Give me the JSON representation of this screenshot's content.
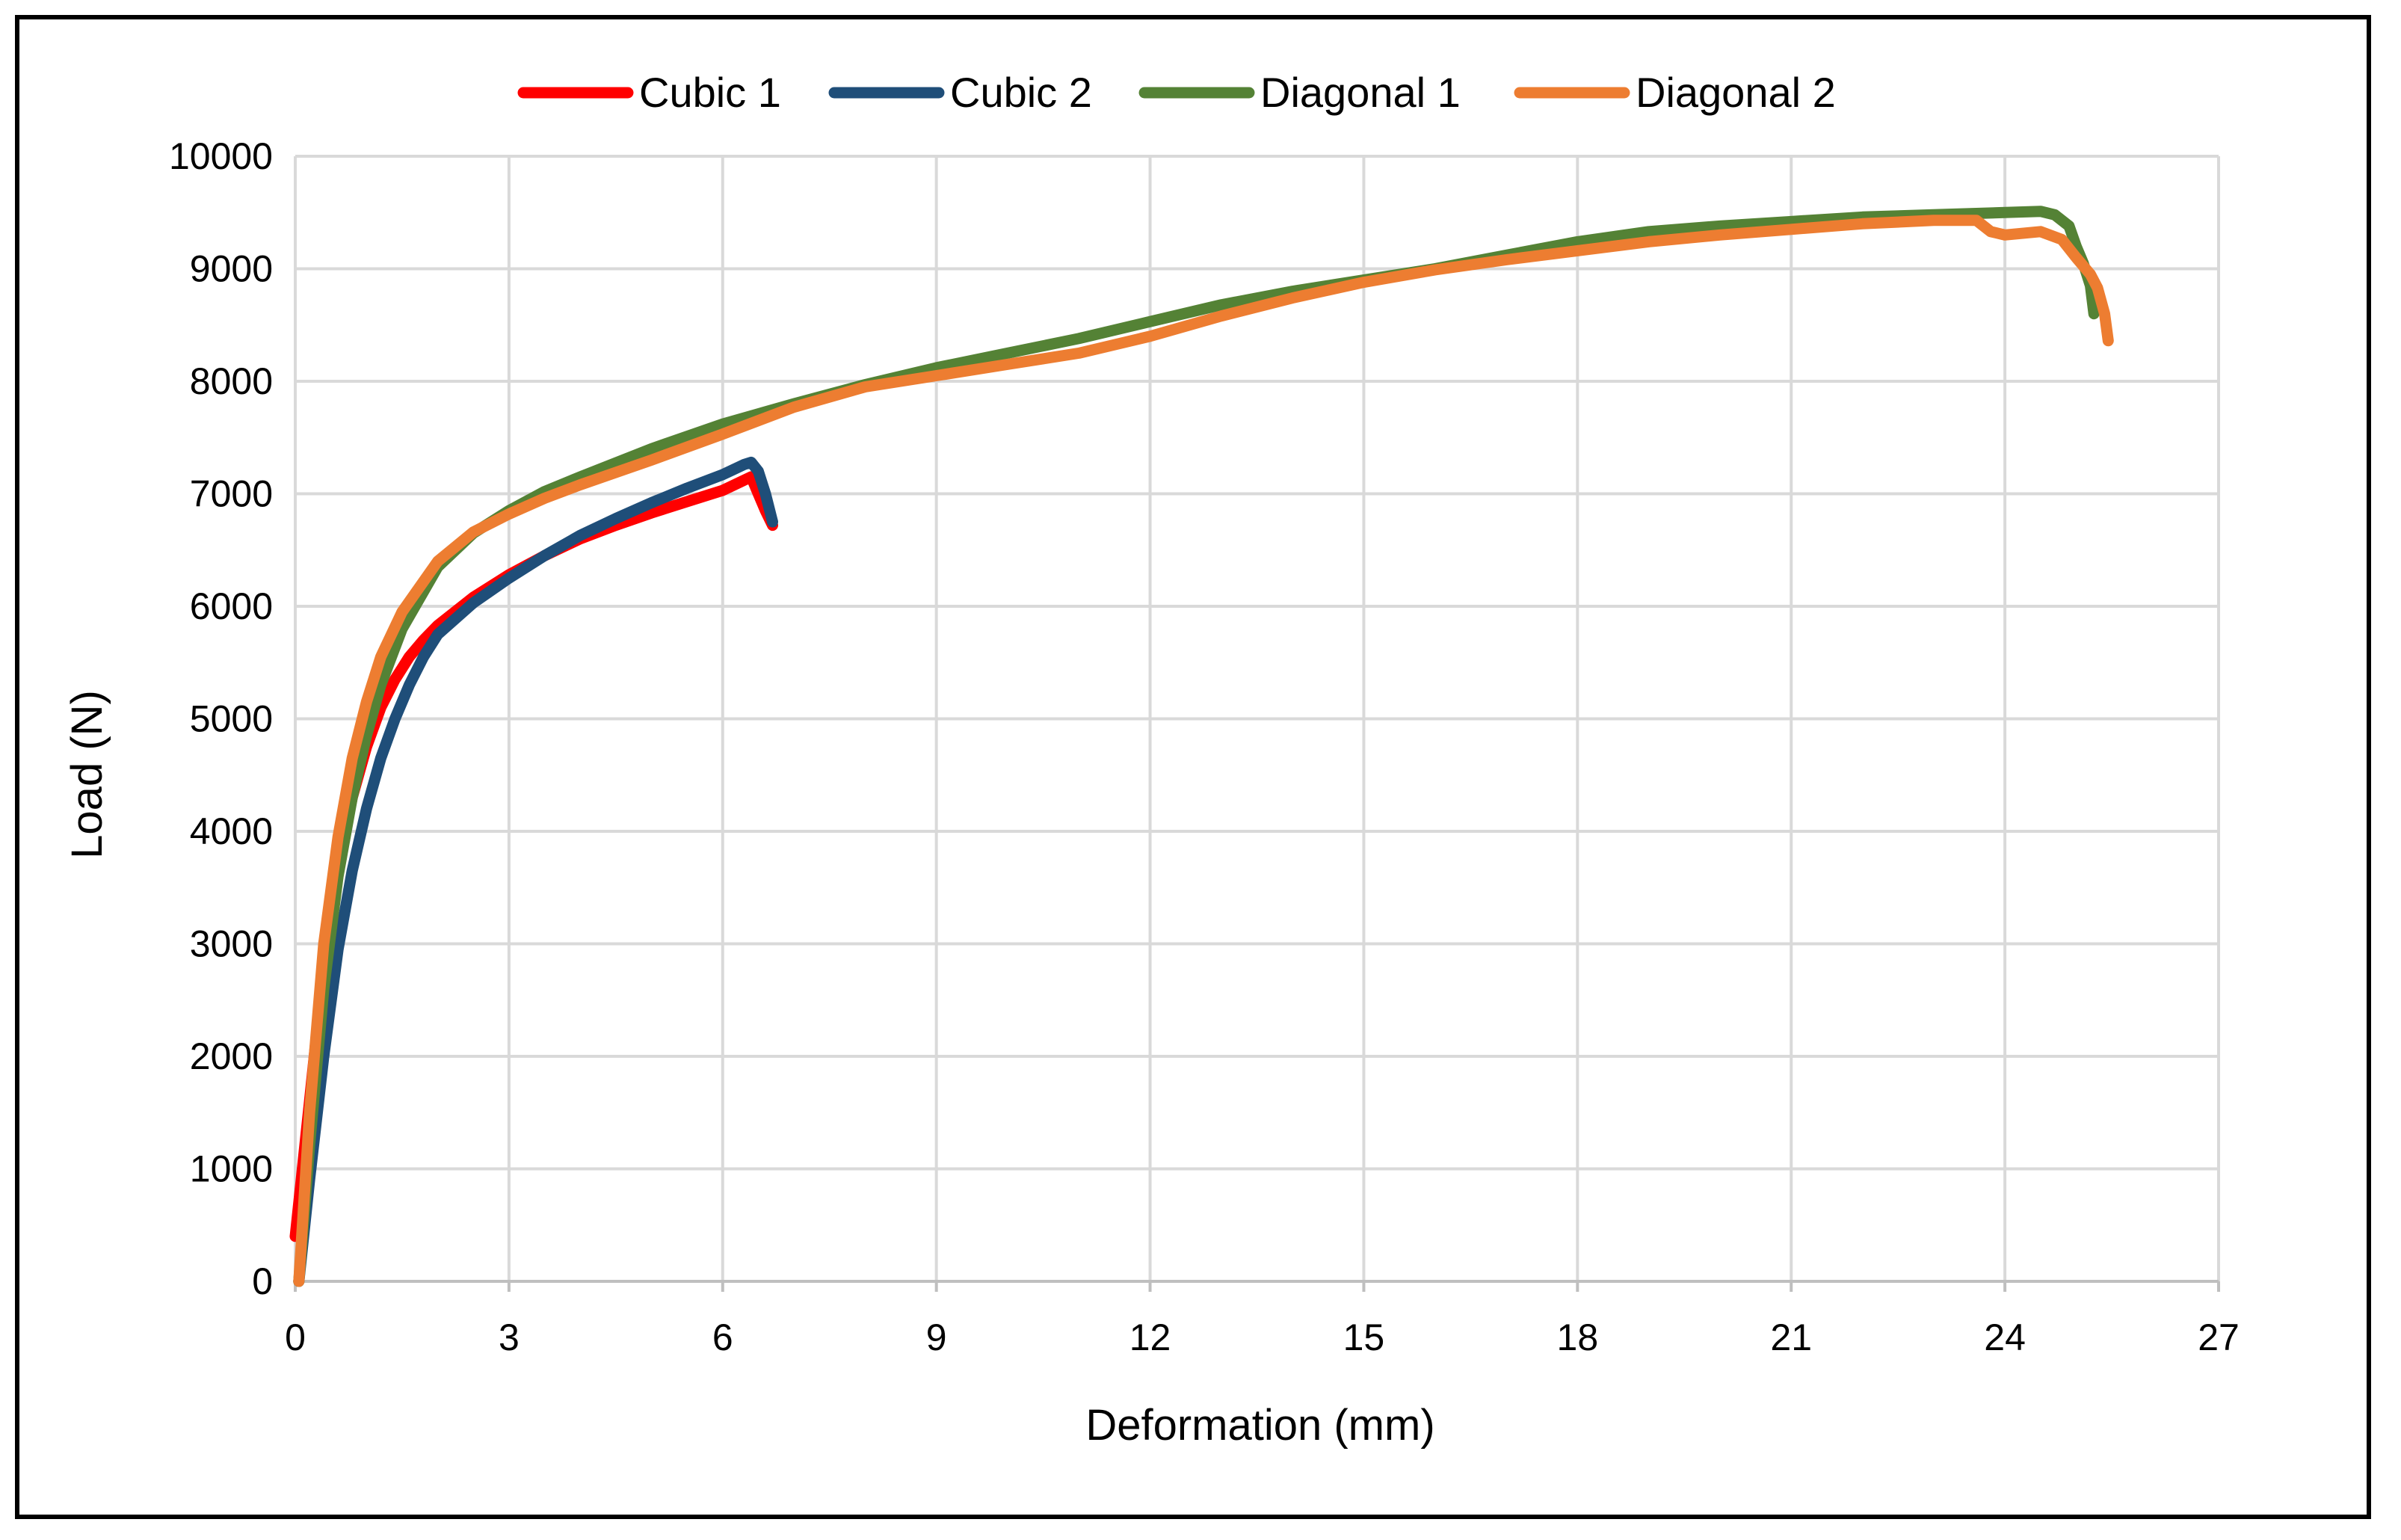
{
  "chart_data": {
    "type": "line",
    "title": "",
    "xlabel": "Deformation (mm)",
    "ylabel": "Load (N)",
    "xlim": [
      0,
      27
    ],
    "ylim": [
      0,
      10000
    ],
    "xticks": [
      0,
      3,
      6,
      9,
      12,
      15,
      18,
      21,
      24,
      27
    ],
    "yticks": [
      0,
      1000,
      2000,
      3000,
      4000,
      5000,
      6000,
      7000,
      8000,
      9000,
      10000
    ],
    "grid": true,
    "legend_position": "top-center",
    "series": [
      {
        "name": "Cubic 1",
        "color": "#ff0000",
        "x": [
          0,
          0.2,
          0.4,
          0.6,
          0.8,
          1.0,
          1.2,
          1.4,
          1.6,
          1.8,
          2.0,
          2.5,
          3.0,
          3.5,
          4.0,
          4.5,
          5.0,
          5.5,
          6.0,
          6.3,
          6.4,
          6.5,
          6.6,
          6.7
        ],
        "y": [
          400,
          1600,
          2800,
          3700,
          4300,
          4750,
          5100,
          5350,
          5550,
          5700,
          5830,
          6080,
          6280,
          6450,
          6600,
          6720,
          6830,
          6930,
          7030,
          7120,
          7150,
          7000,
          6850,
          6720
        ]
      },
      {
        "name": "Cubic 2",
        "color": "#1f4e79",
        "x": [
          0.05,
          0.2,
          0.4,
          0.6,
          0.8,
          1.0,
          1.2,
          1.4,
          1.6,
          1.8,
          2.0,
          2.5,
          3.0,
          3.5,
          4.0,
          4.5,
          5.0,
          5.5,
          6.0,
          6.3,
          6.4,
          6.5,
          6.6,
          6.7
        ],
        "y": [
          0,
          900,
          2000,
          2950,
          3650,
          4200,
          4650,
          5000,
          5300,
          5550,
          5750,
          6030,
          6250,
          6450,
          6630,
          6780,
          6920,
          7050,
          7170,
          7260,
          7280,
          7200,
          7000,
          6750
        ]
      },
      {
        "name": "Diagonal 1",
        "color": "#548235",
        "x": [
          0.05,
          0.2,
          0.4,
          0.6,
          0.8,
          1.0,
          1.2,
          1.5,
          2.0,
          2.5,
          3.0,
          3.5,
          4.0,
          5.0,
          6.0,
          7.0,
          8.0,
          9.0,
          10.0,
          11.0,
          12.0,
          13.0,
          14.0,
          15.0,
          16.0,
          17.0,
          18.0,
          19.0,
          20.0,
          21.0,
          22.0,
          23.0,
          24.0,
          24.5,
          24.7,
          24.9,
          25.0,
          25.1,
          25.2,
          25.25
        ],
        "y": [
          0,
          1200,
          2600,
          3600,
          4300,
          4850,
          5300,
          5800,
          6350,
          6650,
          6850,
          7020,
          7150,
          7400,
          7620,
          7800,
          7970,
          8120,
          8250,
          8380,
          8530,
          8680,
          8800,
          8900,
          9000,
          9120,
          9240,
          9330,
          9380,
          9420,
          9460,
          9480,
          9500,
          9510,
          9480,
          9380,
          9200,
          9050,
          8850,
          8600
        ]
      },
      {
        "name": "Diagonal 2",
        "color": "#ed7d31",
        "x": [
          0.05,
          0.2,
          0.4,
          0.6,
          0.8,
          1.0,
          1.2,
          1.5,
          2.0,
          2.5,
          3.0,
          3.5,
          4.0,
          5.0,
          6.0,
          7.0,
          8.0,
          9.0,
          10.0,
          11.0,
          12.0,
          13.0,
          14.0,
          15.0,
          16.0,
          17.0,
          18.0,
          19.0,
          20.0,
          21.0,
          22.0,
          23.0,
          23.6,
          23.8,
          24.0,
          24.5,
          24.8,
          25.0,
          25.2,
          25.3,
          25.4,
          25.45
        ],
        "y": [
          0,
          1500,
          3000,
          3950,
          4650,
          5150,
          5550,
          5950,
          6400,
          6660,
          6820,
          6960,
          7080,
          7300,
          7530,
          7770,
          7950,
          8050,
          8150,
          8250,
          8400,
          8580,
          8740,
          8880,
          8990,
          9080,
          9160,
          9240,
          9300,
          9350,
          9400,
          9430,
          9430,
          9330,
          9300,
          9330,
          9260,
          9100,
          8950,
          8830,
          8600,
          8360
        ]
      }
    ]
  }
}
